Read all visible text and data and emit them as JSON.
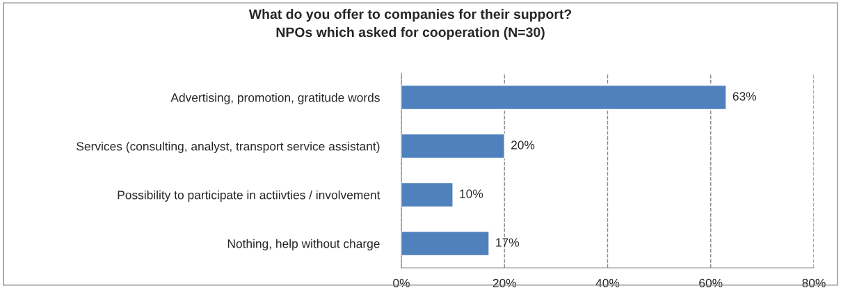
{
  "chart_data": {
    "type": "bar",
    "orientation": "horizontal",
    "title": "What do you offer to companies for their support?",
    "subtitle": "NPOs which asked for cooperation (N=30)",
    "categories": [
      "Advertising, promotion, gratitude words",
      "Services (consulting, analyst, transport service assistant)",
      "Possibility to participate in actiivties / involvement",
      "Nothing, help without charge"
    ],
    "values": [
      63,
      20,
      10,
      17
    ],
    "value_labels": [
      "63%",
      "20%",
      "10%",
      "17%"
    ],
    "color": "#4f81bd",
    "xlim": [
      0,
      80
    ],
    "xticks": [
      {
        "value": 0,
        "label": "0%"
      },
      {
        "value": 20,
        "label": "20%"
      },
      {
        "value": 40,
        "label": "40%"
      },
      {
        "value": 60,
        "label": "60%"
      },
      {
        "value": 80,
        "label": "80%"
      }
    ],
    "grid": "x",
    "legend": false
  }
}
